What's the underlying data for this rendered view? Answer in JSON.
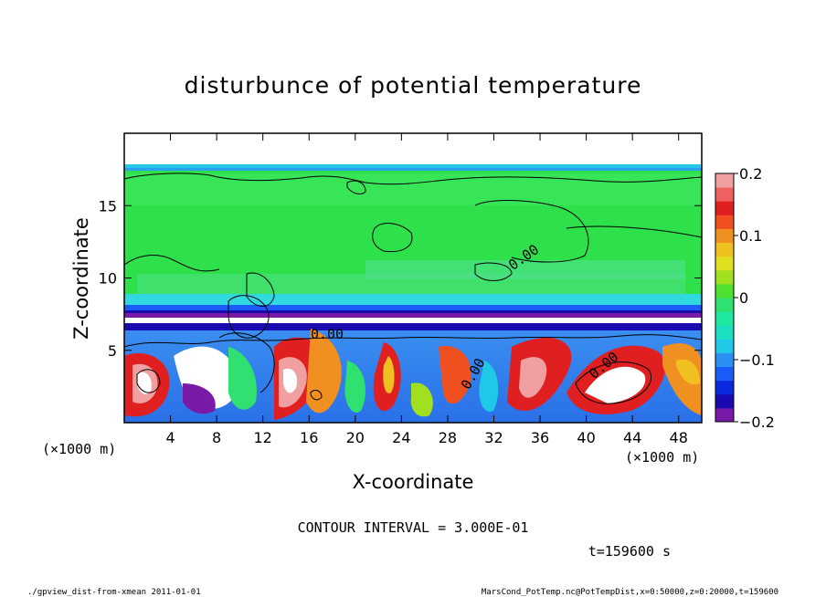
{
  "chart_data": {
    "type": "heatmap",
    "title": "disturbunce of potential temperature",
    "xlabel": "X-coordinate",
    "ylabel": "Z-coordinate",
    "x_unit": "(×1000 m)",
    "z_unit": "(×1000 m)",
    "xlim": [
      0,
      50
    ],
    "ylim": [
      0,
      20
    ],
    "x_ticks": [
      4,
      8,
      12,
      16,
      20,
      24,
      28,
      32,
      36,
      40,
      44,
      48
    ],
    "y_ticks": [
      5,
      10,
      15
    ],
    "colorbar": {
      "range": [
        -0.2,
        0.2
      ],
      "ticks": [
        {
          "value": 0.2,
          "label": "0.2"
        },
        {
          "value": 0.1,
          "label": "0.1"
        },
        {
          "value": 0,
          "label": "0"
        },
        {
          "value": -0.1,
          "label": "−0.1"
        },
        {
          "value": -0.2,
          "label": "−0.2"
        }
      ],
      "colors": [
        "#7a1aa8",
        "#1a0ab0",
        "#0a2ae0",
        "#1a5cf5",
        "#2a90f5",
        "#20c8e8",
        "#1ae0c0",
        "#20e8a0",
        "#30e070",
        "#50e030",
        "#a0e020",
        "#e0e020",
        "#f0c020",
        "#f09020",
        "#f05020",
        "#e02020",
        "#f06060",
        "#f0a0a0"
      ]
    },
    "contour_labels": [
      "0.00",
      "0.00",
      "0.00",
      "0.00"
    ],
    "contour_interval_label": "CONTOUR INTERVAL = 3.000E-01",
    "time_label": "t=159600 s"
  },
  "footer": {
    "left": "./gpview_dist-from-xmean  2011-01-01",
    "right": "MarsCond_PotTemp.nc@PotTempDist,x=0:50000,z=0:20000,t=159600"
  }
}
